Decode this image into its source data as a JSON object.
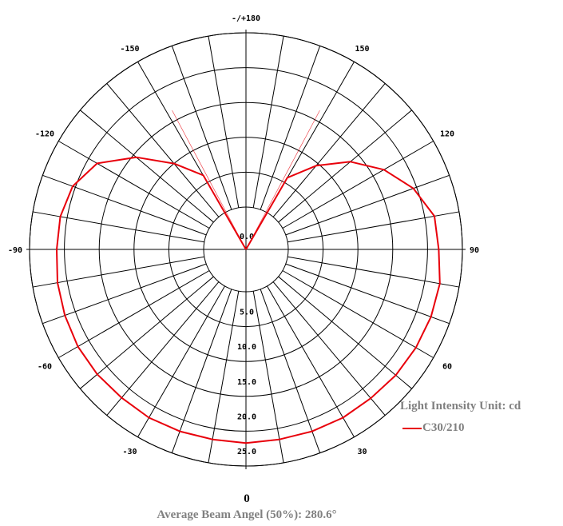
{
  "chart_data": {
    "type": "polar",
    "ring_labels": [
      "0.0",
      "5.0",
      "10.0",
      "15.0",
      "20.0",
      "25.0"
    ],
    "rmax": 25,
    "angle_labels": [
      {
        "angle": 180,
        "text": "-/+180"
      },
      {
        "angle": -150,
        "text": "-150"
      },
      {
        "angle": 150,
        "text": "150"
      },
      {
        "angle": -120,
        "text": "-120"
      },
      {
        "angle": 120,
        "text": "120"
      },
      {
        "angle": -90,
        "text": "-90"
      },
      {
        "angle": 90,
        "text": "90"
      },
      {
        "angle": -60,
        "text": "-60"
      },
      {
        "angle": 60,
        "text": "60"
      },
      {
        "angle": -30,
        "text": "-30"
      },
      {
        "angle": 30,
        "text": "30"
      },
      {
        "angle": 0,
        "text": "0"
      }
    ],
    "series": [
      {
        "name": "C30/210",
        "color": "#e8000b",
        "points": [
          {
            "angle": -150,
            "value": 6.2
          },
          {
            "angle": -140,
            "value": 10.0
          },
          {
            "angle": -130,
            "value": 14.5
          },
          {
            "angle": -120,
            "value": 18.6
          },
          {
            "angle": -110,
            "value": 20.4
          },
          {
            "angle": -100,
            "value": 21.0
          },
          {
            "angle": -90,
            "value": 21.1
          },
          {
            "angle": -80,
            "value": 21.4
          },
          {
            "angle": -70,
            "value": 21.6
          },
          {
            "angle": -60,
            "value": 21.8
          },
          {
            "angle": -50,
            "value": 21.8
          },
          {
            "angle": -40,
            "value": 21.7
          },
          {
            "angle": -30,
            "value": 21.8
          },
          {
            "angle": -20,
            "value": 21.7
          },
          {
            "angle": -10,
            "value": 21.6
          },
          {
            "angle": 0,
            "value": 21.7
          },
          {
            "angle": 10,
            "value": 21.6
          },
          {
            "angle": 20,
            "value": 21.7
          },
          {
            "angle": 30,
            "value": 21.8
          },
          {
            "angle": 40,
            "value": 21.8
          },
          {
            "angle": 50,
            "value": 22.0
          },
          {
            "angle": 60,
            "value": 22.1
          },
          {
            "angle": 70,
            "value": 22.2
          },
          {
            "angle": 80,
            "value": 22.2
          },
          {
            "angle": 90,
            "value": 21.6
          },
          {
            "angle": 100,
            "value": 21.4
          },
          {
            "angle": 110,
            "value": 19.5
          },
          {
            "angle": 120,
            "value": 16.8
          },
          {
            "angle": 130,
            "value": 13.5
          },
          {
            "angle": 140,
            "value": 9.6
          },
          {
            "angle": 150,
            "value": 5.8
          }
        ]
      }
    ],
    "beam_lines": [
      -152,
      152
    ],
    "xlabel": "0",
    "unit_label": "Light Intensity Unit: cd",
    "beam_angle_text": "Average Beam Angel (50%): 280.6°"
  }
}
